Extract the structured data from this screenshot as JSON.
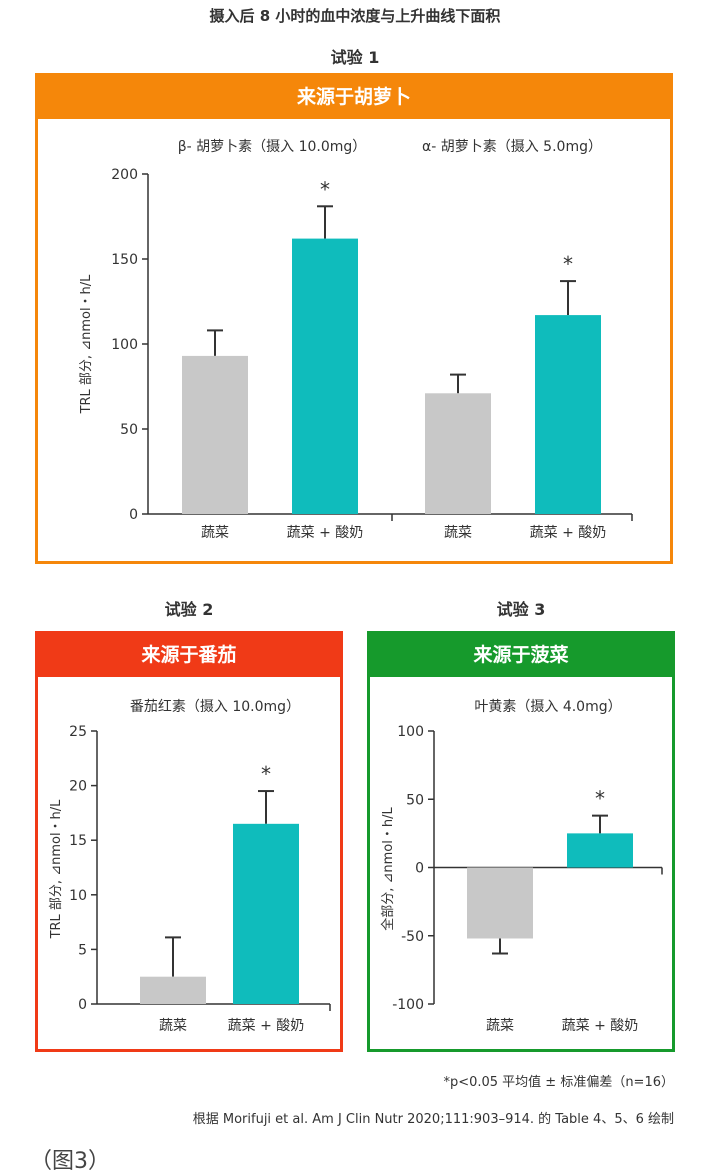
{
  "page": {
    "title": "摄入后 8 小时的血中浓度与上升曲线下面积",
    "footnote1": "*p<0.05 平均值 ± 标准偏差（n=16）",
    "footnote2": "根据 Morifuji et al. Am J Clin Nutr 2020;111:903–914. 的 Table 4、5、6 绘制",
    "figure_label": "（图3）"
  },
  "colors": {
    "orange": "#f5870a",
    "red": "#f03a17",
    "green": "#169a2c",
    "gray_bar": "#c8c8c8",
    "teal_bar": "#0fbcbc"
  },
  "trial1": {
    "trial_label": "试验 1",
    "header": "来源于胡萝卜"
  },
  "trial2": {
    "trial_label": "试验 2",
    "header": "来源于番茄"
  },
  "trial3": {
    "trial_label": "试验 3",
    "header": "来源于菠菜"
  },
  "chart_data": [
    {
      "type": "bar",
      "ylabel": "TRL 部分, ⊿nmol・h/L",
      "ylim": [
        0,
        200
      ],
      "yticks": [
        0,
        50,
        100,
        150,
        200
      ],
      "groups": [
        {
          "title": "β- 胡萝卜素（摄入 10.0mg）",
          "categories": [
            "蔬菜",
            "蔬菜 + 酸奶"
          ],
          "values": [
            93,
            162
          ],
          "errors": [
            15,
            19
          ],
          "significant": [
            false,
            true
          ]
        },
        {
          "title": "α- 胡萝卜素（摄入 5.0mg）",
          "categories": [
            "蔬菜",
            "蔬菜 + 酸奶"
          ],
          "values": [
            71,
            117
          ],
          "errors": [
            11,
            20
          ],
          "significant": [
            false,
            true
          ]
        }
      ]
    },
    {
      "type": "bar",
      "ylabel": "TRL 部分, ⊿nmol・h/L",
      "ylim": [
        0,
        25
      ],
      "yticks": [
        0,
        5,
        10,
        15,
        20,
        25
      ],
      "groups": [
        {
          "title": "番茄红素（摄入 10.0mg）",
          "categories": [
            "蔬菜",
            "蔬菜 + 酸奶"
          ],
          "values": [
            2.5,
            16.5
          ],
          "errors": [
            3.6,
            3.0
          ],
          "significant": [
            false,
            true
          ]
        }
      ]
    },
    {
      "type": "bar",
      "ylabel": "全部分, ⊿nmol・h/L",
      "ylim": [
        -100,
        100
      ],
      "yticks": [
        -100,
        -50,
        0,
        50,
        100
      ],
      "groups": [
        {
          "title": "叶黄素（摄入 4.0mg）",
          "categories": [
            "蔬菜",
            "蔬菜 + 酸奶"
          ],
          "values": [
            -52,
            25
          ],
          "errors": [
            11,
            13
          ],
          "significant": [
            false,
            true
          ]
        }
      ]
    }
  ]
}
